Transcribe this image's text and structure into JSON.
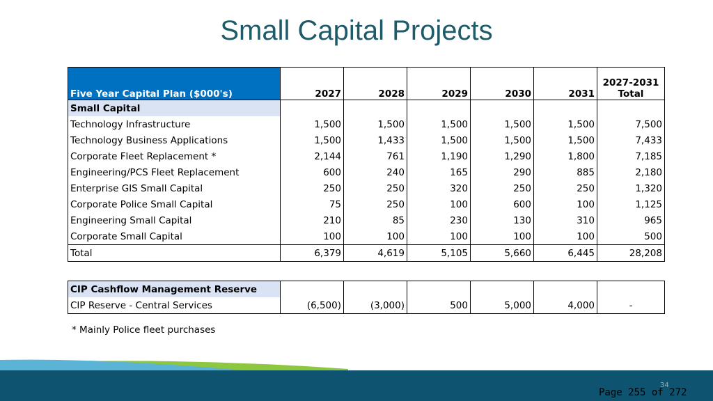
{
  "title": "Small Capital Projects",
  "table": {
    "header": {
      "label": "Five Year Capital Plan ($000's)",
      "years": [
        "2027",
        "2028",
        "2029",
        "2030",
        "2031"
      ],
      "total_top": "2027-2031",
      "total_bottom": "Total"
    },
    "section": "Small Capital",
    "rows": [
      [
        "Technology Infrastructure",
        "1,500",
        "1,500",
        "1,500",
        "1,500",
        "1,500",
        "7,500"
      ],
      [
        "Technology Business Applications",
        "1,500",
        "1,433",
        "1,500",
        "1,500",
        "1,500",
        "7,433"
      ],
      [
        "Corporate Fleet Replacement *",
        "2,144",
        "761",
        "1,190",
        "1,290",
        "1,800",
        "7,185"
      ],
      [
        "Engineering/PCS Fleet Replacement",
        "600",
        "240",
        "165",
        "290",
        "885",
        "2,180"
      ],
      [
        "Enterprise GIS Small Capital",
        "250",
        "250",
        "320",
        "250",
        "250",
        "1,320"
      ],
      [
        "Corporate Police Small Capital",
        "75",
        "250",
        "100",
        "600",
        "100",
        "1,125"
      ],
      [
        "Engineering Small Capital",
        "210",
        "85",
        "230",
        "130",
        "310",
        "965"
      ],
      [
        "Corporate Small Capital",
        "100",
        "100",
        "100",
        "100",
        "100",
        "500"
      ]
    ],
    "total": [
      "Total",
      "6,379",
      "4,619",
      "5,105",
      "5,660",
      "6,445",
      "28,208"
    ]
  },
  "reserve": {
    "section": "CIP Cashflow Management Reserve",
    "row": [
      "CIP Reserve - Central Services",
      "(6,500)",
      "(3,000)",
      "500",
      "5,000",
      "4,000",
      "-"
    ]
  },
  "footnote": "* Mainly Police fleet purchases",
  "slide_number": "34",
  "page_label": "Page 255 of 272"
}
